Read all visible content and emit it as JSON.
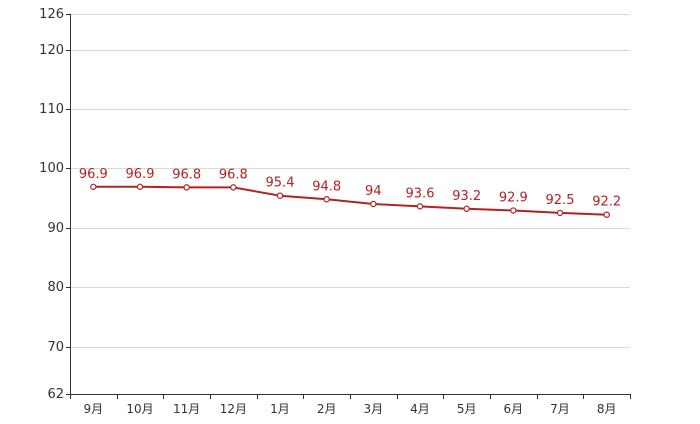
{
  "chart_data": {
    "type": "line",
    "title": "",
    "xlabel": "",
    "ylabel": "",
    "categories": [
      "9月",
      "10月",
      "11月",
      "12月",
      "1月",
      "2月",
      "3月",
      "4月",
      "5月",
      "6月",
      "7月",
      "8月"
    ],
    "series": [
      {
        "values": [
          96.9,
          96.9,
          96.8,
          96.8,
          95.4,
          94.8,
          94,
          93.6,
          93.2,
          92.9,
          92.5,
          92.2
        ]
      }
    ],
    "ylim": [
      62,
      126
    ],
    "yticks": [
      62,
      70,
      80,
      90,
      100,
      110,
      120,
      126
    ],
    "grid": true,
    "data_labels": true,
    "colors": {
      "line": "#b22222",
      "label": "#b22222",
      "marker_fill": "#ffffff"
    }
  }
}
